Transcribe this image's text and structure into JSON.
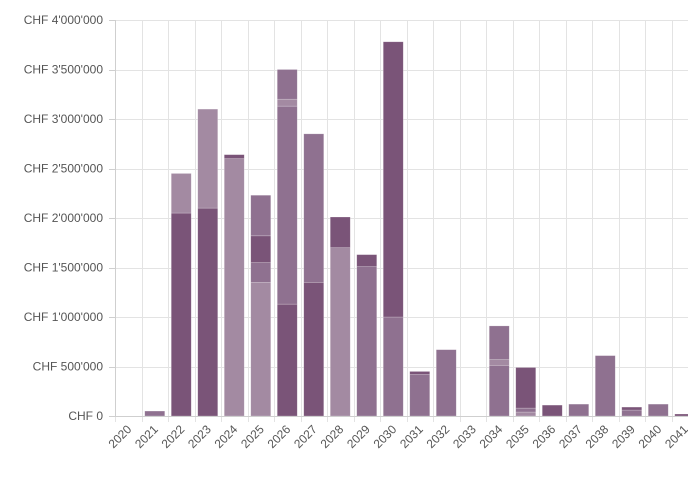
{
  "chart_data": {
    "type": "bar",
    "stacked": true,
    "title": "",
    "xlabel": "",
    "ylabel": "",
    "ylim": [
      0,
      4000000
    ],
    "y_ticks": [
      0,
      500000,
      1000000,
      1500000,
      2000000,
      2500000,
      3000000,
      3500000,
      4000000
    ],
    "y_tick_labels": [
      "CHF 0",
      "CHF 500'000",
      "CHF 1'000'000",
      "CHF 1'500'000",
      "CHF 2'000'000",
      "CHF 2'500'000",
      "CHF 3'000'000",
      "CHF 3'500'000",
      "CHF 4'000'000"
    ],
    "categories": [
      "2020",
      "2021",
      "2022",
      "2023",
      "2024",
      "2025",
      "2026",
      "2027",
      "2028",
      "2029",
      "2030",
      "2031",
      "2032",
      "2033",
      "2034",
      "2035",
      "2036",
      "2037",
      "2038",
      "2039",
      "2040",
      "2041"
    ],
    "grid": true,
    "legend": "none",
    "colors": [
      "#7a5478",
      "#8f7190",
      "#a38aa2",
      "#6d4a6b"
    ],
    "stacks": [
      [],
      [
        {
          "value": 50000,
          "color": 1
        }
      ],
      [
        {
          "value": 2050000,
          "color": 0
        },
        {
          "value": 400000,
          "color": 2
        }
      ],
      [
        {
          "value": 2100000,
          "color": 0
        },
        {
          "value": 1000000,
          "color": 2
        }
      ],
      [
        {
          "value": 2600000,
          "color": 2
        },
        {
          "value": 40000,
          "color": 0
        }
      ],
      [
        {
          "value": 1350000,
          "color": 2
        },
        {
          "value": 200000,
          "color": 1
        },
        {
          "value": 270000,
          "color": 0
        },
        {
          "value": 410000,
          "color": 1
        }
      ],
      [
        {
          "value": 1130000,
          "color": 0
        },
        {
          "value": 2000000,
          "color": 1
        },
        {
          "value": 70000,
          "color": 2
        },
        {
          "value": 300000,
          "color": 1
        }
      ],
      [
        {
          "value": 1350000,
          "color": 0
        },
        {
          "value": 1500000,
          "color": 1
        }
      ],
      [
        {
          "value": 1700000,
          "color": 2
        },
        {
          "value": 310000,
          "color": 0
        }
      ],
      [
        {
          "value": 1510000,
          "color": 1
        },
        {
          "value": 120000,
          "color": 0
        }
      ],
      [
        {
          "value": 1000000,
          "color": 1
        },
        {
          "value": 2780000,
          "color": 0
        }
      ],
      [
        {
          "value": 420000,
          "color": 1
        },
        {
          "value": 30000,
          "color": 0
        }
      ],
      [
        {
          "value": 670000,
          "color": 1
        }
      ],
      [],
      [
        {
          "value": 510000,
          "color": 1
        },
        {
          "value": 60000,
          "color": 2
        },
        {
          "value": 340000,
          "color": 1
        }
      ],
      [
        {
          "value": 40000,
          "color": 2
        },
        {
          "value": 40000,
          "color": 1
        },
        {
          "value": 410000,
          "color": 0
        }
      ],
      [
        {
          "value": 110000,
          "color": 0
        }
      ],
      [
        {
          "value": 120000,
          "color": 1
        }
      ],
      [
        {
          "value": 610000,
          "color": 1
        }
      ],
      [
        {
          "value": 60000,
          "color": 1
        },
        {
          "value": 30000,
          "color": 0
        }
      ],
      [
        {
          "value": 120000,
          "color": 1
        }
      ],
      [
        {
          "value": 20000,
          "color": 0
        }
      ]
    ]
  }
}
